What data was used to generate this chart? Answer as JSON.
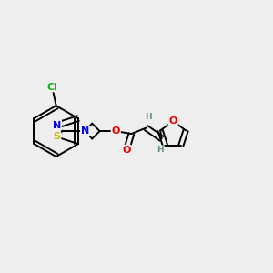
{
  "background_color": "#eeeeee",
  "bond_color": "#000000",
  "atom_colors": {
    "Cl": "#00bb00",
    "S": "#ccbb00",
    "N": "#0000ee",
    "O": "#ee0000",
    "H": "#6a8a8a",
    "C": "#000000"
  },
  "bond_width": 1.4,
  "font_size_atom": 8.0,
  "font_size_h": 6.5,
  "figsize": [
    3.0,
    3.0
  ],
  "dpi": 100
}
